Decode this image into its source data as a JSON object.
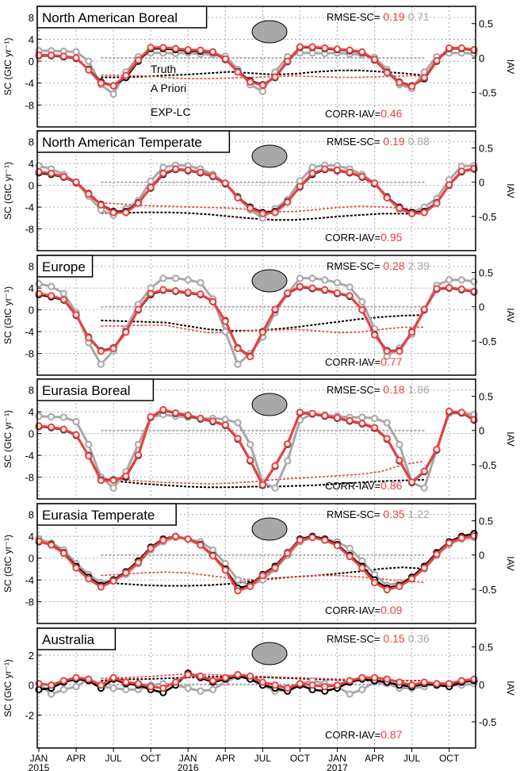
{
  "figure": {
    "y_left_label": "SC (GtC yr⁻¹)",
    "y_right_label": "IAV",
    "legend": {
      "truth": "Truth",
      "prior": "A Priori",
      "exp": "EXP-LC"
    },
    "x_ticks": [
      "JAN",
      "APR",
      "JUL",
      "OCT",
      "JAN",
      "APR",
      "JUL",
      "OCT",
      "JAN",
      "APR",
      "JUL",
      "OCT"
    ],
    "x_years": [
      "2015",
      "2016",
      "2017"
    ]
  },
  "colors": {
    "truth": "#000000",
    "prior": "#a8a8a8",
    "exp": "#ef3f3f"
  },
  "chart_data": [
    {
      "type": "line",
      "title": "North American Boreal",
      "rmse_label": "RMSE-SC=",
      "rmse_exp": "0.19",
      "rmse_prior": "0.71",
      "corr_label": "CORR-IAV=",
      "corr_exp": "0.46",
      "ylim": [
        -12,
        10
      ],
      "yticks": [
        "8",
        "4",
        "0",
        "-4",
        "-8"
      ],
      "ylim_right": [
        -1.0,
        0.75
      ],
      "yticks_right": [
        "0.5",
        "0",
        "-0.5"
      ],
      "sc": {
        "truth": [
          1.0,
          1.0,
          0.8,
          0.5,
          -1.5,
          -3.8,
          -4.5,
          -3.0,
          0.0,
          2.3,
          2.3,
          2.1,
          1.9,
          1.8,
          1.6,
          0.3,
          -1.9,
          -3.6,
          -4.3,
          -3.0,
          -0.1,
          2.5,
          2.5,
          2.3,
          2.1,
          1.9,
          1.6,
          0.2,
          -2.0,
          -3.8,
          -4.5,
          -3.2,
          0.0,
          2.3,
          2.3,
          2.0
        ],
        "prior": [
          1.9,
          1.9,
          1.8,
          1.7,
          0.0,
          -4.3,
          -6.0,
          -2.0,
          0.8,
          1.5,
          1.5,
          1.4,
          1.5,
          1.3,
          1.2,
          0.9,
          -1.5,
          -4.3,
          -5.5,
          -2.0,
          0.8,
          1.5,
          1.5,
          1.4,
          1.5,
          1.3,
          1.2,
          0.7,
          -1.5,
          -4.3,
          -5.0,
          -2.0,
          0.8,
          1.5,
          1.5,
          1.4
        ],
        "exp": [
          1.1,
          1.1,
          0.9,
          0.6,
          -1.6,
          -4.0,
          -4.5,
          -2.6,
          0.2,
          2.5,
          2.5,
          2.3,
          2.1,
          2.0,
          1.7,
          0.4,
          -2.0,
          -3.8,
          -4.4,
          -2.9,
          0.0,
          2.6,
          2.6,
          2.4,
          2.2,
          2.0,
          1.7,
          0.3,
          -2.1,
          -3.9,
          -4.6,
          -3.0,
          0.1,
          2.4,
          2.4,
          2.1
        ]
      },
      "iav": {
        "truth": [
          -0.28,
          -0.28,
          -0.27,
          -0.25,
          -0.24,
          -0.22,
          -0.2,
          -0.22,
          -0.24,
          -0.23,
          -0.2,
          -0.18,
          -0.18,
          -0.2,
          -0.22,
          -0.25
        ],
        "prior": [
          0.0,
          0.0,
          0.0,
          0.0,
          0.0,
          0.0,
          0.0,
          0.0,
          0.0,
          0.0,
          0.0,
          0.0,
          0.0,
          0.0,
          0.0,
          0.0
        ],
        "exp": [
          -0.25,
          -0.25,
          -0.26,
          -0.28,
          -0.3,
          -0.3,
          -0.29,
          -0.28,
          -0.27,
          -0.26,
          -0.27,
          -0.28,
          -0.28,
          -0.27,
          -0.26,
          -0.26
        ]
      }
    },
    {
      "type": "line",
      "title": "North American Temperate",
      "rmse_label": "RMSE-SC=",
      "rmse_exp": "0.19",
      "rmse_prior": "0.88",
      "corr_label": "CORR-IAV=",
      "corr_exp": "0.95",
      "ylim": [
        -12,
        10
      ],
      "yticks": [
        "8",
        "4",
        "0",
        "-4",
        "-8"
      ],
      "ylim_right": [
        -1.0,
        0.75
      ],
      "yticks_right": [
        "0.5",
        "0",
        "-0.5"
      ],
      "sc": {
        "truth": [
          2.3,
          2.0,
          1.5,
          0.5,
          -1.5,
          -3.5,
          -4.8,
          -4.8,
          -3.2,
          -0.5,
          2.0,
          2.9,
          2.7,
          2.3,
          1.6,
          0.3,
          -2.2,
          -4.0,
          -5.0,
          -4.8,
          -3.0,
          -0.3,
          2.0,
          2.9,
          2.7,
          2.3,
          1.5,
          0.3,
          -2.2,
          -4.0,
          -5.0,
          -4.8,
          -3.2,
          0.0,
          2.5,
          3.0
        ],
        "prior": [
          3.6,
          3.0,
          2.0,
          0.5,
          -2.0,
          -4.5,
          -5.5,
          -4.3,
          -2.8,
          0.8,
          3.3,
          3.7,
          3.6,
          3.0,
          2.0,
          0.4,
          -2.0,
          -4.5,
          -6.0,
          -4.3,
          -2.6,
          0.8,
          3.3,
          3.7,
          3.6,
          3.0,
          2.0,
          0.4,
          -2.0,
          -4.5,
          -5.0,
          -4.0,
          -2.4,
          1.0,
          3.5,
          3.6
        ],
        "exp": [
          2.5,
          2.2,
          1.6,
          0.6,
          -1.6,
          -3.6,
          -5.0,
          -5.0,
          -3.3,
          -0.4,
          2.2,
          3.0,
          2.8,
          2.4,
          1.7,
          0.4,
          -2.3,
          -4.2,
          -5.2,
          -5.0,
          -3.1,
          -0.2,
          2.2,
          3.0,
          2.8,
          2.4,
          1.6,
          0.4,
          -2.3,
          -4.2,
          -5.2,
          -5.0,
          -3.3,
          0.1,
          2.6,
          3.1
        ]
      },
      "iav": {
        "truth": [
          -0.45,
          -0.45,
          -0.44,
          -0.44,
          -0.45,
          -0.47,
          -0.5,
          -0.53,
          -0.55,
          -0.55,
          -0.53,
          -0.5,
          -0.48,
          -0.46,
          -0.46,
          -0.46
        ],
        "prior": [
          0.0,
          0.0,
          0.0,
          0.0,
          0.0,
          0.0,
          0.0,
          0.0,
          0.0,
          0.0,
          0.0,
          0.0,
          0.0,
          0.0,
          0.0,
          0.0
        ],
        "exp": [
          -0.3,
          -0.32,
          -0.34,
          -0.35,
          -0.36,
          -0.37,
          -0.38,
          -0.4,
          -0.43,
          -0.43,
          -0.4,
          -0.37,
          -0.35,
          -0.36,
          -0.38,
          -0.42
        ]
      }
    },
    {
      "type": "line",
      "title": "Europe",
      "rmse_label": "RMSE-SC=",
      "rmse_exp": "0.28",
      "rmse_prior": "2.39",
      "corr_label": "CORR-IAV=",
      "corr_exp": "0.77",
      "ylim": [
        -12,
        10
      ],
      "yticks": [
        "8",
        "4",
        "0",
        "-4",
        "-8"
      ],
      "ylim_right": [
        -1.0,
        0.75
      ],
      "yticks_right": [
        "0.5",
        "0",
        "-0.5"
      ],
      "sc": {
        "truth": [
          2.8,
          2.4,
          1.8,
          -1.0,
          -5.0,
          -7.5,
          -7.0,
          -4.0,
          0.0,
          2.8,
          3.6,
          3.4,
          3.1,
          2.8,
          1.5,
          -2.0,
          -7.0,
          -8.5,
          -4.0,
          0.0,
          3.0,
          4.2,
          3.9,
          3.6,
          3.0,
          2.5,
          0.0,
          -4.5,
          -7.5,
          -7.5,
          -4.0,
          0.0,
          3.8,
          4.0,
          3.7,
          3.3
        ],
        "prior": [
          4.8,
          4.3,
          3.0,
          -0.5,
          -6.0,
          -10.0,
          -7.5,
          -3.5,
          1.0,
          4.0,
          5.8,
          5.8,
          5.5,
          5.0,
          2.0,
          -4.0,
          -10.0,
          -8.0,
          -5.0,
          -0.5,
          3.0,
          5.8,
          5.8,
          5.5,
          5.0,
          4.2,
          1.5,
          -3.5,
          -8.5,
          -7.0,
          -4.5,
          0.0,
          4.5,
          5.5,
          5.5,
          5.2
        ],
        "exp": [
          3.0,
          2.6,
          1.9,
          -0.9,
          -5.1,
          -7.6,
          -7.1,
          -4.1,
          0.1,
          3.0,
          3.7,
          3.5,
          3.2,
          2.9,
          1.5,
          -2.1,
          -7.1,
          -8.6,
          -4.1,
          0.1,
          3.1,
          4.3,
          4.0,
          3.7,
          3.1,
          2.6,
          0.0,
          -4.6,
          -7.6,
          -7.6,
          -4.1,
          0.1,
          3.9,
          4.1,
          3.8,
          3.4
        ]
      },
      "iav": {
        "truth": [
          -0.2,
          -0.21,
          -0.22,
          -0.23,
          -0.28,
          -0.33,
          -0.35,
          -0.35,
          -0.33,
          -0.3,
          -0.26,
          -0.22,
          -0.18,
          -0.15,
          -0.13,
          -0.12
        ],
        "prior": [
          0.0,
          0.0,
          0.0,
          0.0,
          0.0,
          0.0,
          0.0,
          0.0,
          0.0,
          0.0,
          0.0,
          0.0,
          0.0,
          0.0,
          0.0,
          0.0
        ],
        "exp": [
          -0.28,
          -0.28,
          -0.27,
          -0.27,
          -0.33,
          -0.38,
          -0.37,
          -0.35,
          -0.34,
          -0.33,
          -0.35,
          -0.38,
          -0.37,
          -0.33,
          -0.3,
          -0.3
        ]
      }
    },
    {
      "type": "line",
      "title": "Eurasia Boreal",
      "rmse_label": "RMSE-SC=",
      "rmse_exp": "0.18",
      "rmse_prior": "1.86",
      "corr_label": "CORR-IAV=",
      "corr_exp": "0.86",
      "ylim": [
        -12,
        10
      ],
      "yticks": [
        "8",
        "4",
        "0",
        "-4",
        "-8"
      ],
      "ylim_right": [
        -1.0,
        0.75
      ],
      "yticks_right": [
        "0.5",
        "0",
        "-0.5"
      ],
      "sc": {
        "truth": [
          1.3,
          1.1,
          0.7,
          -0.3,
          -4.0,
          -8.5,
          -8.5,
          -8.0,
          -4.0,
          3.0,
          4.3,
          3.7,
          3.3,
          2.7,
          2.2,
          1.5,
          -1.0,
          -5.0,
          -9.5,
          -6.0,
          -2.0,
          3.8,
          3.6,
          3.2,
          2.8,
          2.3,
          1.8,
          1.0,
          -1.0,
          -5.0,
          -9.0,
          -7.0,
          -3.0,
          4.0,
          3.8,
          2.5
        ],
        "prior": [
          3.2,
          3.1,
          3.0,
          2.2,
          -2.0,
          -8.0,
          -10.0,
          -7.0,
          -2.0,
          3.0,
          3.5,
          3.2,
          3.0,
          2.8,
          2.8,
          2.6,
          2.0,
          -2.0,
          -9.0,
          -10.0,
          -5.0,
          2.5,
          3.6,
          3.4,
          3.2,
          3.0,
          3.0,
          2.8,
          2.0,
          -2.0,
          -9.0,
          -10.0,
          -3.0,
          3.7,
          3.8,
          3.5
        ],
        "exp": [
          1.4,
          1.2,
          0.8,
          -0.2,
          -4.1,
          -8.6,
          -8.6,
          -7.8,
          -3.9,
          3.1,
          4.4,
          3.8,
          3.4,
          2.8,
          2.3,
          1.6,
          -0.9,
          -4.9,
          -9.4,
          -5.9,
          -1.9,
          3.9,
          3.7,
          3.3,
          2.9,
          2.4,
          1.9,
          1.1,
          -0.9,
          -4.9,
          -8.9,
          -6.9,
          -2.9,
          4.1,
          3.9,
          2.6
        ]
      },
      "iav": {
        "truth": [
          -0.72,
          -0.75,
          -0.78,
          -0.8,
          -0.82,
          -0.83,
          -0.83,
          -0.82,
          -0.82,
          -0.81,
          -0.8,
          -0.78,
          -0.76,
          -0.74,
          -0.73,
          -0.72
        ],
        "prior": [
          0.0,
          0.0,
          0.0,
          0.0,
          0.0,
          0.0,
          0.0,
          0.0,
          0.0,
          0.0,
          0.0,
          0.0,
          0.0,
          0.0,
          0.0,
          0.0
        ],
        "exp": [
          -0.7,
          -0.72,
          -0.74,
          -0.76,
          -0.77,
          -0.78,
          -0.77,
          -0.75,
          -0.72,
          -0.7,
          -0.68,
          -0.66,
          -0.64,
          -0.6,
          -0.5,
          -0.45
        ]
      }
    },
    {
      "type": "line",
      "title": "Eurasia Temperate",
      "rmse_label": "RMSE-SC=",
      "rmse_exp": "0.35",
      "rmse_prior": "1.22",
      "corr_label": "CORR-IAV=",
      "corr_exp": "0.09",
      "ylim": [
        -12,
        10
      ],
      "yticks": [
        "8",
        "4",
        "0",
        "-4",
        "-8"
      ],
      "ylim_right": [
        -1.0,
        0.75
      ],
      "yticks_right": [
        "0.5",
        "0",
        "-0.5"
      ],
      "sc": {
        "truth": [
          3.0,
          2.5,
          1.0,
          -1.5,
          -3.5,
          -5.0,
          -4.0,
          -2.5,
          -0.5,
          2.0,
          3.5,
          4.0,
          3.5,
          2.5,
          0.5,
          -2.0,
          -5.5,
          -5.0,
          -3.0,
          -1.5,
          1.0,
          3.5,
          4.0,
          3.5,
          2.5,
          0.5,
          -1.5,
          -4.0,
          -5.5,
          -5.0,
          -3.5,
          -1.5,
          1.0,
          3.0,
          4.0,
          4.5
        ],
        "prior": [
          3.5,
          2.8,
          1.5,
          -1.0,
          -3.0,
          -4.5,
          -4.0,
          -3.0,
          -1.0,
          1.5,
          3.0,
          3.8,
          3.5,
          3.0,
          1.5,
          -1.0,
          -4.0,
          -5.0,
          -4.0,
          -2.0,
          0.5,
          3.0,
          3.8,
          3.5,
          3.0,
          1.8,
          -0.5,
          -3.0,
          -5.0,
          -4.5,
          -3.5,
          -2.0,
          0.5,
          2.5,
          3.5,
          3.8
        ],
        "exp": [
          3.1,
          2.4,
          0.9,
          -1.8,
          -3.8,
          -5.3,
          -4.2,
          -2.7,
          -0.8,
          1.8,
          3.3,
          4.0,
          3.5,
          2.4,
          0.4,
          -2.2,
          -6.0,
          -5.2,
          -3.2,
          -1.8,
          0.9,
          3.3,
          3.8,
          3.3,
          2.3,
          0.3,
          -1.8,
          -4.5,
          -5.8,
          -5.2,
          -3.8,
          -1.8,
          0.7,
          2.8,
          3.7,
          4.1
        ]
      },
      "iav": {
        "truth": [
          -0.4,
          -0.42,
          -0.44,
          -0.45,
          -0.45,
          -0.44,
          -0.42,
          -0.38,
          -0.34,
          -0.32,
          -0.3,
          -0.27,
          -0.24,
          -0.2,
          -0.18,
          -0.2
        ],
        "prior": [
          0.0,
          0.0,
          0.0,
          0.0,
          0.0,
          0.0,
          0.0,
          0.0,
          0.0,
          0.0,
          0.0,
          0.0,
          0.0,
          0.0,
          0.0,
          0.0
        ],
        "exp": [
          -0.3,
          -0.28,
          -0.26,
          -0.25,
          -0.26,
          -0.3,
          -0.34,
          -0.36,
          -0.35,
          -0.32,
          -0.3,
          -0.3,
          -0.32,
          -0.35,
          -0.38,
          -0.4
        ]
      }
    },
    {
      "type": "line",
      "title": "Australia",
      "rmse_label": "RMSE-SC=",
      "rmse_exp": "0.15",
      "rmse_prior": "0.36",
      "corr_label": "CORR-IAV=",
      "corr_exp": "0.87",
      "ylim": [
        -4.2,
        3.8
      ],
      "yticks": [
        "2",
        "0",
        "-2"
      ],
      "ylim_right": [
        -0.85,
        0.75
      ],
      "yticks_right": [
        "0.5",
        "0",
        "-0.5"
      ],
      "sc": {
        "truth": [
          -0.3,
          -0.2,
          0.2,
          0.4,
          0.3,
          -0.2,
          0.4,
          0.1,
          0.0,
          -0.3,
          -0.5,
          0.0,
          0.8,
          0.5,
          0.2,
          0.4,
          0.6,
          0.4,
          0.0,
          -0.2,
          -0.4,
          0.0,
          -0.3,
          -0.4,
          -0.2,
          0.2,
          0.4,
          0.3,
          0.2,
          0.0,
          -0.1,
          0.1,
          0.0,
          -0.1,
          0.2,
          0.3
        ],
        "prior": [
          0.1,
          -0.6,
          -0.3,
          -0.1,
          0.4,
          -0.1,
          -0.2,
          -0.3,
          -0.3,
          0.0,
          0.1,
          0.0,
          -0.2,
          -0.4,
          -0.3,
          0.2,
          0.6,
          0.5,
          0.0,
          -0.4,
          -0.3,
          0.1,
          0.3,
          0.1,
          -0.1,
          -0.6,
          -0.3,
          0.2,
          0.1,
          -0.2,
          -0.2,
          -0.1,
          0.1,
          0.0,
          0.0,
          0.1
        ],
        "exp": [
          0.1,
          0.0,
          0.3,
          0.5,
          0.4,
          0.0,
          0.5,
          0.2,
          0.1,
          -0.1,
          -0.2,
          0.2,
          0.7,
          0.6,
          0.3,
          0.5,
          0.7,
          0.6,
          0.2,
          0.0,
          -0.2,
          0.1,
          0.0,
          -0.1,
          0.0,
          0.3,
          0.5,
          0.5,
          0.4,
          0.2,
          0.0,
          0.2,
          0.1,
          0.1,
          0.3,
          0.4
        ]
      },
      "iav": {
        "truth": [
          0.05,
          0.07,
          0.07,
          0.08,
          0.09,
          0.1,
          0.1,
          0.1,
          0.09,
          0.08,
          0.07,
          0.06,
          0.05,
          0.05,
          0.05,
          0.05
        ],
        "prior": [
          0.0,
          0.0,
          0.0,
          0.0,
          0.0,
          0.0,
          0.0,
          0.0,
          0.0,
          0.0,
          0.0,
          0.0,
          0.0,
          0.0,
          0.0,
          0.0
        ],
        "exp": [
          0.08,
          0.09,
          0.1,
          0.12,
          0.14,
          0.13,
          0.12,
          0.11,
          0.1,
          0.09,
          0.08,
          0.07,
          0.06,
          0.05,
          0.05,
          0.05
        ]
      }
    }
  ]
}
